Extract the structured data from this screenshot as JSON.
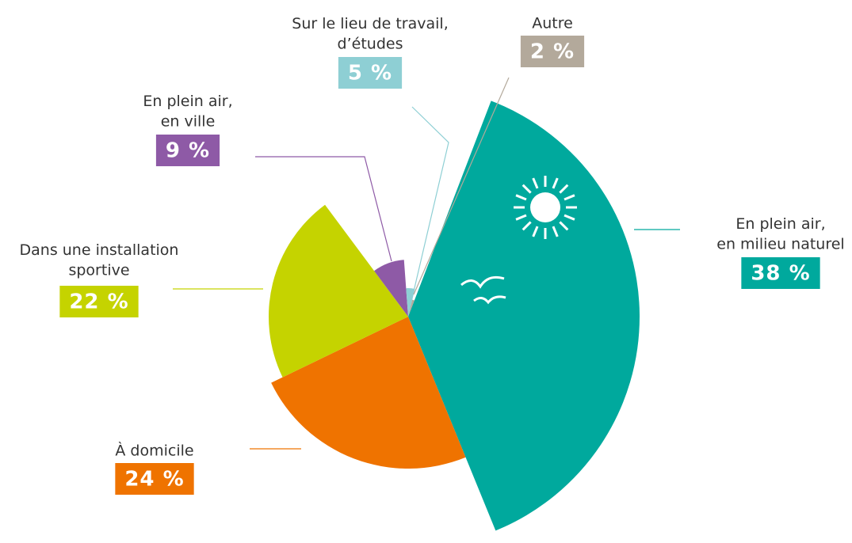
{
  "chart_data": {
    "type": "pie",
    "categories": [
      "En plein air,\nen milieu naturel",
      "À domicile",
      "Dans une installation\nsportive",
      "En plein air,\nen ville",
      "Sur le lieu de travail,\nd’études",
      "Autre"
    ],
    "values": [
      38,
      24,
      22,
      9,
      5,
      2
    ],
    "value_labels": [
      "38 %",
      "24 %",
      "22 %",
      "9 %",
      "5 %",
      "2 %"
    ],
    "colors": [
      "#00a99d",
      "#ef7300",
      "#c5d300",
      "#8e5aa6",
      "#8ecfd4",
      "#b3a99b"
    ]
  }
}
